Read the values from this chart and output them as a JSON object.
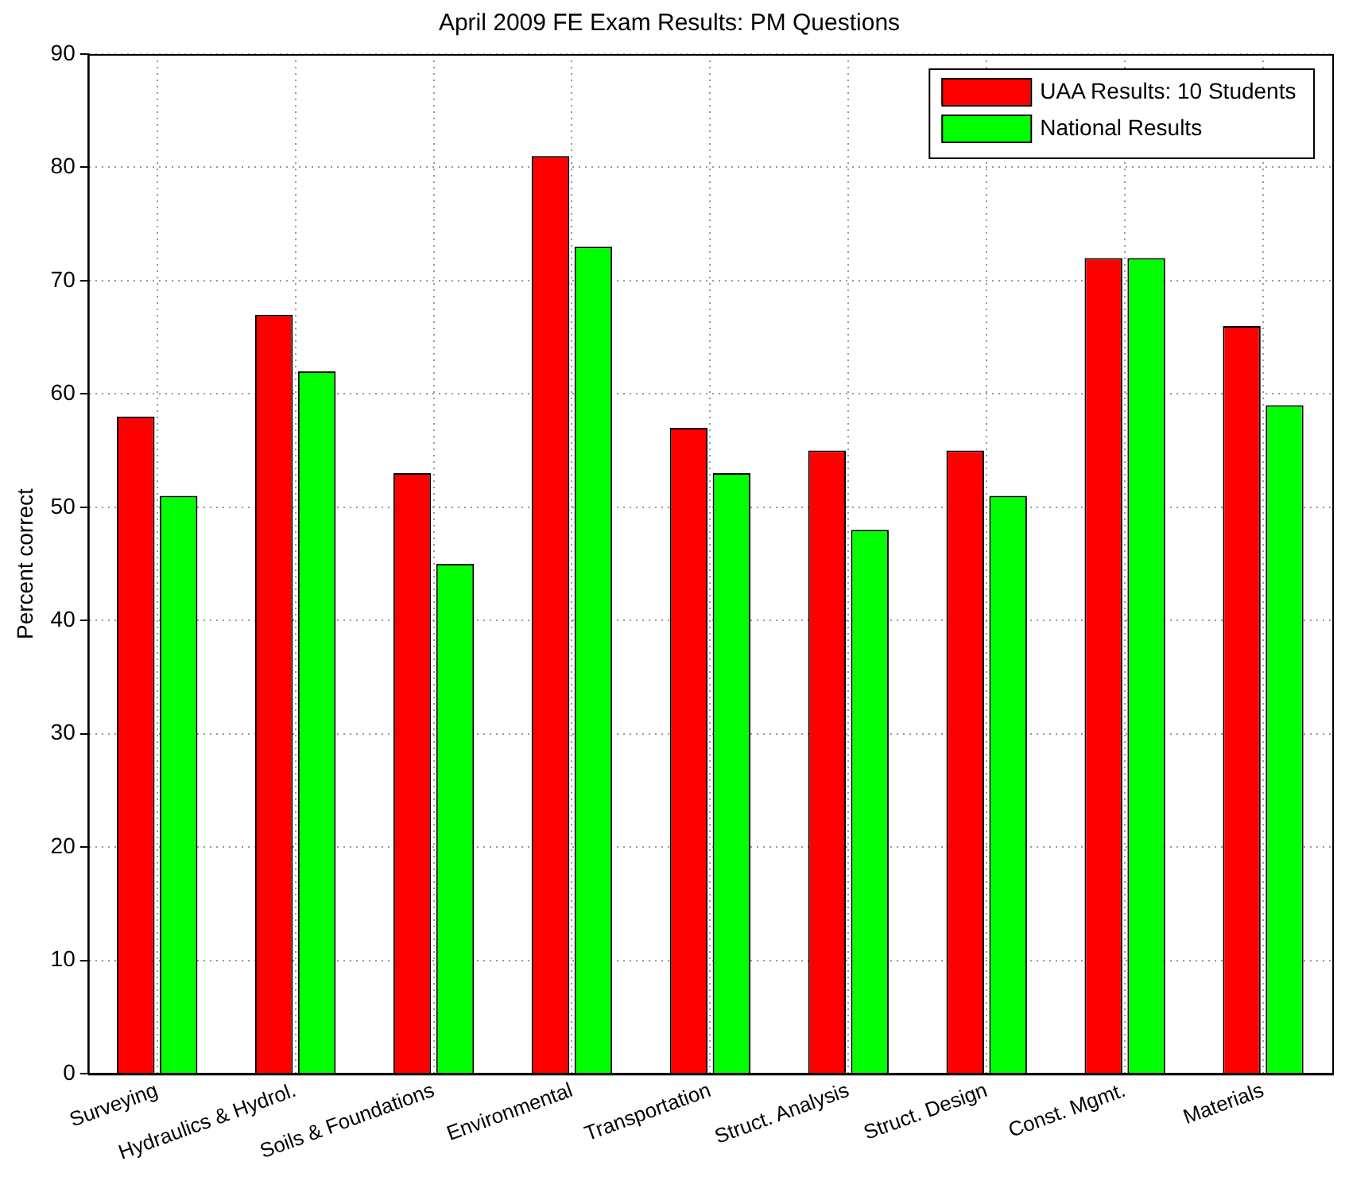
{
  "chart_data": {
    "type": "bar",
    "title": "April 2009 FE Exam Results: PM Questions",
    "ylabel": "Percent correct",
    "categories": [
      "Surveying",
      "Hydraulics & Hydrol.",
      "Soils & Foundations",
      "Environmental",
      "Transportation",
      "Struct. Analysis",
      "Struct. Design",
      "Const. Mgmt.",
      "Materials"
    ],
    "series": [
      {
        "name": "UAA Results: 10 Students",
        "color": "#ff0000",
        "values": [
          58,
          67,
          53,
          81,
          57,
          55,
          55,
          72,
          66
        ]
      },
      {
        "name": "National Results",
        "color": "#00ff00",
        "values": [
          51,
          62,
          45,
          73,
          53,
          48,
          51,
          72,
          59
        ]
      }
    ],
    "ylim": [
      0,
      90
    ],
    "yticks": [
      0,
      10,
      20,
      30,
      40,
      50,
      60,
      70,
      80,
      90
    ],
    "grid": true,
    "legend": "top right"
  }
}
